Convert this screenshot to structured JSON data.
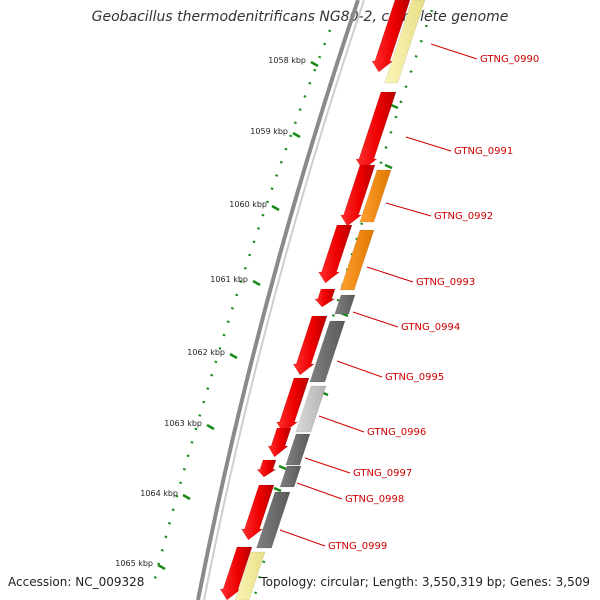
{
  "title": "Geobacillus thermodenitrificans NG80-2, complete genome",
  "accession_text": "Accession: NC_009328",
  "summary_text": "Topology: circular; Length: 3,550,319 bp; Genes: 3,509",
  "colors": {
    "cds": "#ff0000",
    "highlight": "#ff8c00",
    "dark_gray": "#6b6b6b",
    "light_gray": "#c8c8c8",
    "pale_yellow": "#f6ef9c",
    "tick": "#1a8a1a",
    "label": "#cc0000"
  },
  "scale_labels": [
    "1058 kbp",
    "1059 kbp",
    "1060 kbp",
    "1061 kbp",
    "1062 kbp",
    "1063 kbp",
    "1064 kbp",
    "1065 kbp"
  ],
  "genes": [
    "GTNG_0990",
    "GTNG_0991",
    "GTNG_0992",
    "GTNG_0993",
    "GTNG_0994",
    "GTNG_0995",
    "GTNG_0996",
    "GTNG_0997",
    "GTNG_0998",
    "GTNG_0999"
  ]
}
